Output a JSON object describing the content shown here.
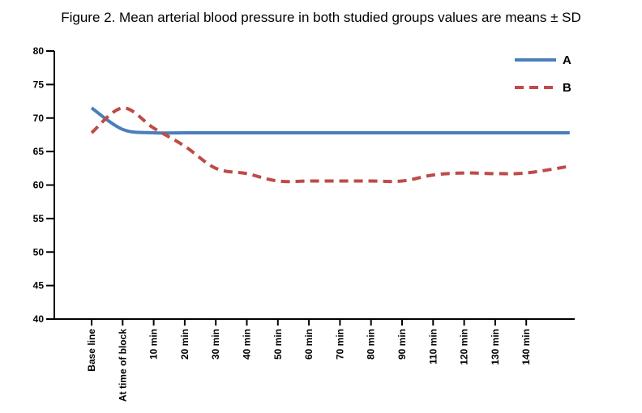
{
  "chart_data": {
    "type": "line",
    "title": "Figure 2. Mean arterial blood pressure in both studied groups values are means ± SD",
    "xlabel": "",
    "ylabel": "",
    "categories": [
      "Base line",
      "At time of block",
      "10 min",
      "20 min",
      "30 min",
      "40 min",
      "50 min",
      "60 min",
      "70 min",
      "80 min",
      "90 min",
      "110 min",
      "120 min",
      "130 min",
      "140 min"
    ],
    "x_extends_past_last_category": true,
    "yticks": [
      40,
      45,
      50,
      55,
      60,
      65,
      70,
      75,
      80
    ],
    "ylim": [
      40,
      80
    ],
    "grid": false,
    "legend_position": "top-right",
    "series": [
      {
        "name": "A",
        "color": "#4a7ebb",
        "dash": "solid",
        "values": [
          71.5,
          68.3,
          67.8,
          67.8,
          67.8,
          67.8,
          67.8,
          67.8,
          67.8,
          67.8,
          67.8,
          67.8,
          67.8,
          67.8,
          67.8
        ],
        "end_value": 67.8
      },
      {
        "name": "B",
        "color": "#be4b48",
        "dash": "dashed",
        "values": [
          67.8,
          71.5,
          68.5,
          65.8,
          62.5,
          61.7,
          60.6,
          60.6,
          60.6,
          60.6,
          60.6,
          61.5,
          61.8,
          61.7,
          61.8
        ],
        "end_value": 62.8
      }
    ]
  }
}
